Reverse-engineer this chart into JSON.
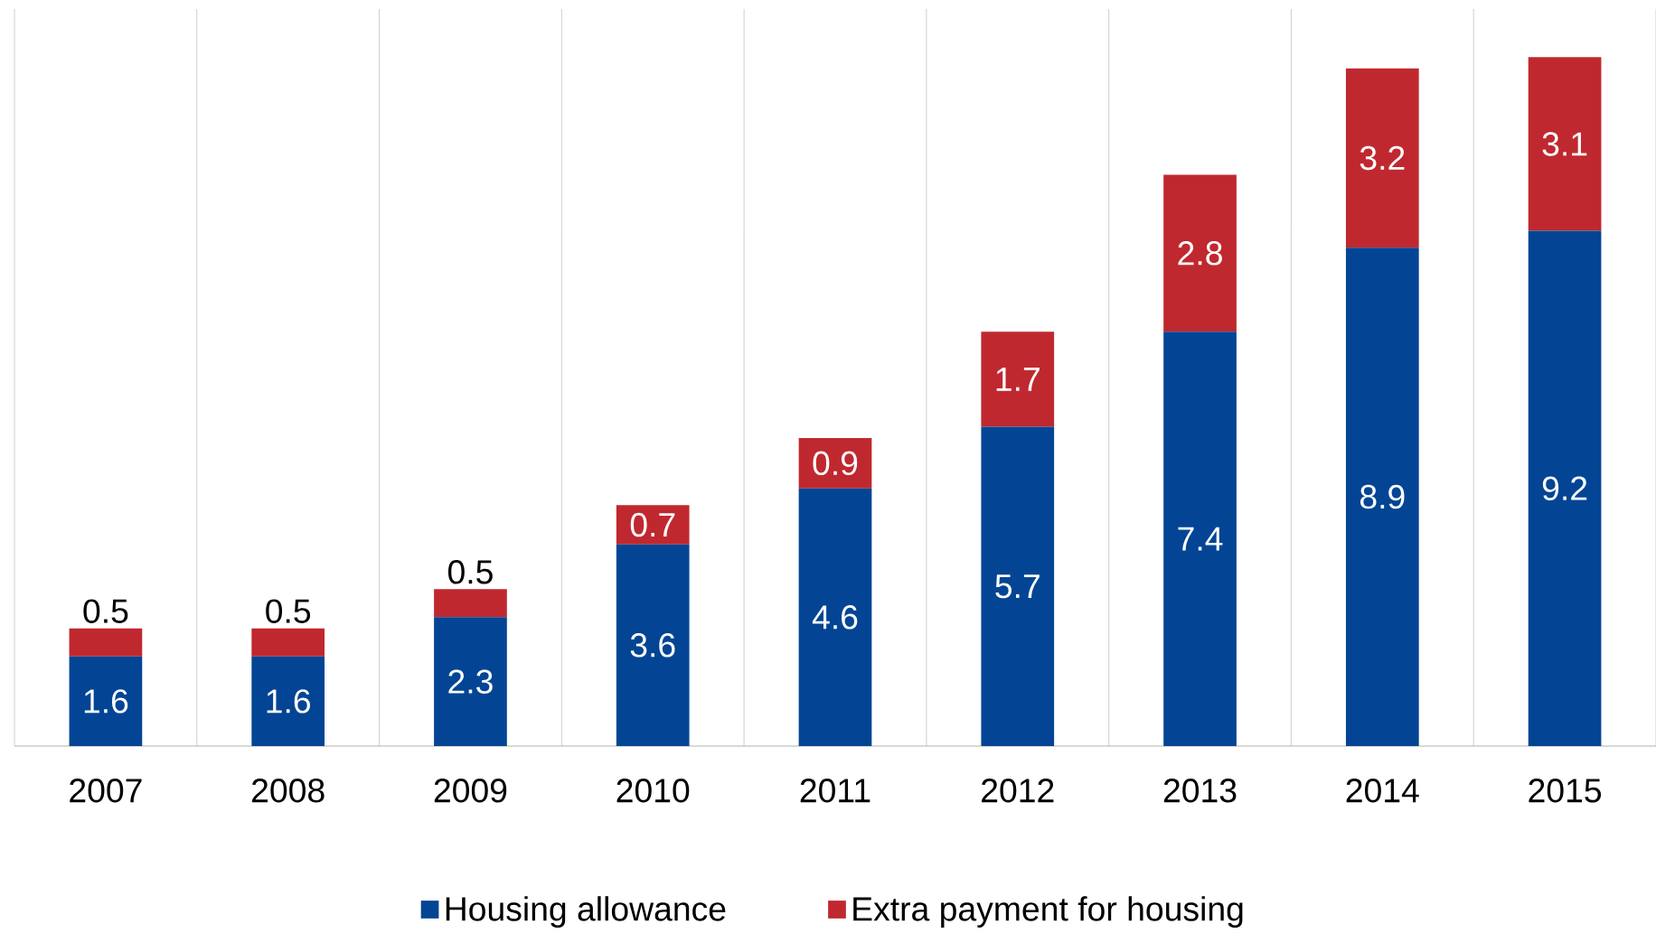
{
  "chart_data": {
    "type": "bar",
    "stacked": true,
    "categories": [
      "2007",
      "2008",
      "2009",
      "2010",
      "2011",
      "2012",
      "2013",
      "2014",
      "2015"
    ],
    "series": [
      {
        "name": "Housing allowance",
        "color": "#034594",
        "values": [
          1.6,
          1.6,
          2.3,
          3.6,
          4.6,
          5.7,
          7.4,
          8.9,
          9.2
        ]
      },
      {
        "name": "Extra payment for housing",
        "color": "#c0282f",
        "values": [
          0.5,
          0.5,
          0.5,
          0.7,
          0.9,
          1.7,
          2.8,
          3.2,
          3.1
        ]
      }
    ],
    "data_labels": true,
    "grid": "x",
    "legend": "bottom"
  }
}
